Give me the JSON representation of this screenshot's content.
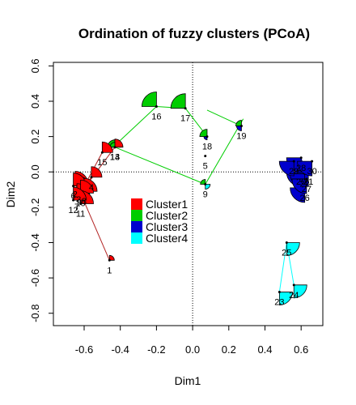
{
  "chart_data": {
    "type": "scatter",
    "title": "Ordination of fuzzy clusters (PCoA)",
    "xlabel": "Dim1",
    "ylabel": "Dim2",
    "xlim": [
      -0.77,
      0.72
    ],
    "ylim": [
      -0.87,
      0.62
    ],
    "xticks": [
      "-0.6",
      "-0.4",
      "-0.2",
      "0.0",
      "0.2",
      "0.4",
      "0.6"
    ],
    "yticks": [
      "-0.8",
      "-0.6",
      "-0.4",
      "-0.2",
      "0.0",
      "0.2",
      "0.4",
      "0.6"
    ],
    "reference_lines": {
      "x": 0,
      "y": 0,
      "style": "dotted"
    },
    "legend": {
      "position": "center-left",
      "entries": [
        {
          "label": "Cluster1",
          "color": "#ff0000"
        },
        {
          "label": "Cluster2",
          "color": "#00cd00"
        },
        {
          "label": "Cluster3",
          "color": "#0000cd"
        },
        {
          "label": "Cluster4",
          "color": "#00ffff"
        }
      ]
    },
    "cluster_colors": [
      "#ff0000",
      "#00cd00",
      "#0000cd",
      "#00ffff"
    ],
    "cluster_line_colors": [
      "#b22222",
      "#00cd00",
      "#0000cd",
      "#00ffff"
    ],
    "points": [
      {
        "id": "1",
        "x": -0.46,
        "y": -0.5,
        "membership": [
          0.3,
          0.0,
          0.0,
          0.0
        ]
      },
      {
        "id": "2",
        "x": -0.65,
        "y": -0.07,
        "membership": [
          0.8,
          0.0,
          0.0,
          0.0
        ]
      },
      {
        "id": "3",
        "x": -0.63,
        "y": -0.1,
        "membership": [
          0.8,
          0.0,
          0.0,
          0.0
        ]
      },
      {
        "id": "4",
        "x": -0.56,
        "y": -0.03,
        "membership": [
          0.65,
          0.0,
          0.0,
          0.0
        ]
      },
      {
        "id": "5",
        "x": 0.07,
        "y": 0.09,
        "membership": [
          0.0,
          0.0,
          0.0,
          0.0
        ]
      },
      {
        "id": "6",
        "x": -0.66,
        "y": -0.08,
        "membership": [
          0.8,
          0.0,
          0.0,
          0.0
        ]
      },
      {
        "id": "7",
        "x": -0.64,
        "y": -0.14,
        "membership": [
          0.8,
          0.0,
          0.0,
          0.0
        ]
      },
      {
        "id": "8",
        "x": -0.6,
        "y": -0.11,
        "membership": [
          0.8,
          0.0,
          0.0,
          0.0
        ]
      },
      {
        "id": "9",
        "x": 0.07,
        "y": -0.07,
        "membership": [
          0.0,
          0.3,
          0.0,
          0.3
        ]
      },
      {
        "id": "10",
        "x": -0.62,
        "y": -0.12,
        "membership": [
          0.8,
          0.0,
          0.0,
          0.0
        ]
      },
      {
        "id": "11",
        "x": -0.62,
        "y": -0.18,
        "membership": [
          0.8,
          0.0,
          0.0,
          0.0
        ]
      },
      {
        "id": "12",
        "x": -0.66,
        "y": -0.16,
        "membership": [
          0.8,
          0.0,
          0.0,
          0.0
        ]
      },
      {
        "id": "13",
        "x": -0.43,
        "y": 0.14,
        "membership": [
          0.35,
          0.45,
          0.0,
          0.0
        ]
      },
      {
        "id": "14",
        "x": -0.43,
        "y": 0.14,
        "membership": [
          0.5,
          0.3,
          0.0,
          0.0
        ]
      },
      {
        "id": "15",
        "x": -0.5,
        "y": 0.11,
        "membership": [
          0.65,
          0.0,
          0.0,
          0.0
        ]
      },
      {
        "id": "16",
        "x": -0.2,
        "y": 0.37,
        "membership": [
          0.0,
          0.9,
          0.0,
          0.0
        ]
      },
      {
        "id": "17",
        "x": -0.04,
        "y": 0.36,
        "membership": [
          0.0,
          0.9,
          0.0,
          0.0
        ]
      },
      {
        "id": "18",
        "x": 0.08,
        "y": 0.2,
        "membership": [
          0.0,
          0.45,
          0.2,
          0.0
        ]
      },
      {
        "id": "19",
        "x": 0.27,
        "y": 0.26,
        "membership": [
          0.0,
          0.35,
          0.3,
          0.0
        ]
      },
      {
        "id": "20",
        "x": 0.6,
        "y": 0.0,
        "membership": [
          0.0,
          0.0,
          0.9,
          0.0
        ]
      },
      {
        "id": "21",
        "x": 0.64,
        "y": 0.0,
        "membership": [
          0.0,
          0.0,
          0.9,
          0.0
        ]
      },
      {
        "id": "22",
        "x": 0.62,
        "y": -0.01,
        "membership": [
          0.0,
          0.0,
          0.9,
          0.0
        ]
      },
      {
        "id": "23",
        "x": 0.48,
        "y": -0.68,
        "membership": [
          0.0,
          0.0,
          0.0,
          0.8
        ]
      },
      {
        "id": "24",
        "x": 0.56,
        "y": -0.64,
        "membership": [
          0.0,
          0.0,
          0.0,
          0.8
        ]
      },
      {
        "id": "25",
        "x": 0.52,
        "y": -0.4,
        "membership": [
          0.0,
          0.0,
          0.0,
          0.8
        ]
      },
      {
        "id": "26",
        "x": 0.62,
        "y": -0.09,
        "membership": [
          0.0,
          0.0,
          0.9,
          0.0
        ]
      },
      {
        "id": "27",
        "x": 0.63,
        "y": -0.04,
        "membership": [
          0.0,
          0.0,
          0.9,
          0.0
        ]
      },
      {
        "id": "28",
        "x": 0.6,
        "y": 0.08,
        "membership": [
          0.0,
          0.0,
          0.9,
          0.0
        ]
      },
      {
        "id": "29",
        "x": 0.56,
        "y": 0.06,
        "membership": [
          0.0,
          0.0,
          0.9,
          0.0
        ]
      },
      {
        "id": "30",
        "x": 0.66,
        "y": 0.06,
        "membership": [
          0.0,
          0.0,
          0.9,
          0.0
        ]
      }
    ],
    "spider_lines": [
      {
        "cluster": 1,
        "center": [
          -0.62,
          -0.12
        ],
        "to": [
          "1",
          "15",
          "14",
          "2",
          "3",
          "4",
          "6",
          "7",
          "8",
          "10",
          "11",
          "12"
        ]
      },
      {
        "cluster": 2,
        "center": [
          -0.43,
          0.15
        ],
        "to": [
          "16"
        ]
      },
      {
        "cluster": 2,
        "center": [
          -0.2,
          0.37
        ],
        "to": [
          "17"
        ]
      },
      {
        "cluster": 2,
        "center": [
          -0.04,
          0.36
        ],
        "to": [
          "18"
        ]
      },
      {
        "cluster": 2,
        "center": [
          0.08,
          0.35
        ],
        "to": [
          "19"
        ]
      },
      {
        "cluster": 2,
        "center": [
          0.28,
          0.3
        ],
        "to": [
          "9"
        ]
      },
      {
        "cluster": 2,
        "center": [
          0.07,
          -0.07
        ],
        "to": [
          "13"
        ]
      },
      {
        "cluster": 3,
        "center": [
          0.62,
          0.0
        ],
        "to": [
          "20",
          "21",
          "22",
          "26",
          "27",
          "28",
          "29",
          "30"
        ]
      },
      {
        "cluster": 4,
        "center": [
          0.52,
          -0.4
        ],
        "to": [
          "23",
          "24"
        ]
      }
    ]
  }
}
